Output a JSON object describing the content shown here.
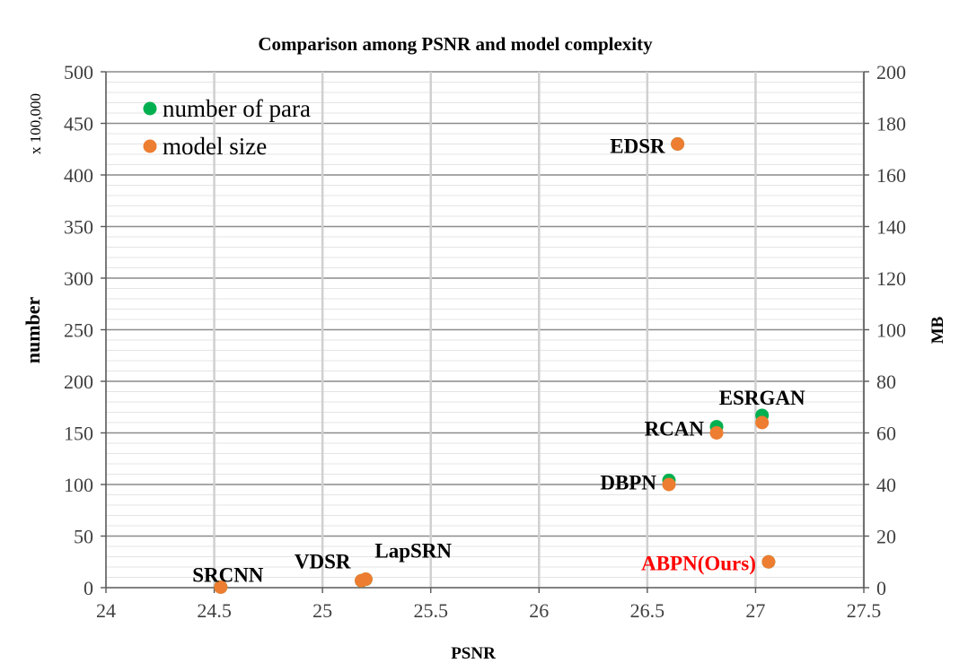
{
  "chart_data": {
    "type": "scatter",
    "title": "Comparison among PSNR and model complexity",
    "xlabel": "PSNR",
    "ylabel": "number",
    "ylabel_unit": "x 100,000",
    "y2label": "MB",
    "xlim": [
      24,
      27.5
    ],
    "ylim": [
      0,
      500
    ],
    "y2lim": [
      0,
      200
    ],
    "x_ticks": [
      "24",
      "24.5",
      "25",
      "25.5",
      "26",
      "26.5",
      "27",
      "27.5"
    ],
    "y_ticks": [
      "0",
      "50",
      "100",
      "150",
      "200",
      "250",
      "300",
      "350",
      "400",
      "450",
      "500"
    ],
    "y2_ticks": [
      "0",
      "20",
      "40",
      "60",
      "80",
      "100",
      "120",
      "140",
      "160",
      "180",
      "200"
    ],
    "grid": true,
    "legend_position": "top-left",
    "series": [
      {
        "name": "number of para",
        "color": "#00b050",
        "axis": "left",
        "points": [
          {
            "x": 24.53,
            "y": 0.6
          },
          {
            "x": 25.18,
            "y": 6.7
          },
          {
            "x": 25.2,
            "y": 8.1
          },
          {
            "x": 26.6,
            "y": 104
          },
          {
            "x": 26.82,
            "y": 156
          },
          {
            "x": 27.03,
            "y": 167
          },
          {
            "x": 26.64,
            "y": 430
          },
          {
            "x": 27.06,
            "y": 25
          }
        ]
      },
      {
        "name": "model size",
        "color": "#ed7d31",
        "axis": "right",
        "points": [
          {
            "x": 24.53,
            "y": 0.2
          },
          {
            "x": 25.18,
            "y": 2.7
          },
          {
            "x": 25.2,
            "y": 3.3
          },
          {
            "x": 26.6,
            "y": 40
          },
          {
            "x": 26.82,
            "y": 60
          },
          {
            "x": 27.03,
            "y": 64
          },
          {
            "x": 26.64,
            "y": 172
          },
          {
            "x": 27.06,
            "y": 10
          }
        ]
      }
    ],
    "annotations": [
      {
        "text": "SRCNN",
        "x": 24.53,
        "y": 0.6,
        "color": "#000000",
        "anchor": "middle"
      },
      {
        "text": "VDSR",
        "x": 25.18,
        "y": 6.7,
        "color": "#000000",
        "anchor": "end"
      },
      {
        "text": "LapSRN",
        "x": 25.2,
        "y": 8.1,
        "color": "#000000",
        "anchor": "start"
      },
      {
        "text": "DBPN",
        "x": 26.6,
        "y": 104,
        "color": "#000000",
        "anchor": "end"
      },
      {
        "text": "RCAN",
        "x": 26.82,
        "y": 156,
        "color": "#000000",
        "anchor": "end"
      },
      {
        "text": "ESRGAN",
        "x": 27.03,
        "y": 167,
        "color": "#000000",
        "anchor": "middle"
      },
      {
        "text": "EDSR",
        "x": 26.64,
        "y": 430,
        "color": "#000000",
        "anchor": "end"
      },
      {
        "text": "ABPN(Ours)",
        "x": 27.06,
        "y": 25,
        "color": "#ff0000",
        "anchor": "end"
      }
    ]
  }
}
